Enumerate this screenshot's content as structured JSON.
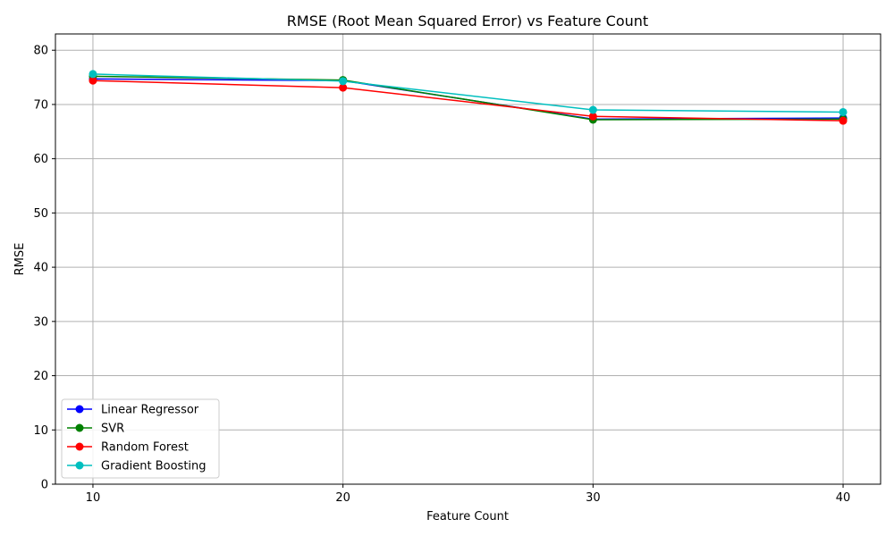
{
  "chart_data": {
    "type": "line",
    "title": "RMSE (Root Mean Squared Error) vs Feature Count",
    "xlabel": "Feature Count",
    "ylabel": "RMSE",
    "x": [
      10,
      20,
      30,
      40
    ],
    "xlim": [
      8.5,
      41.5
    ],
    "ylim": [
      0,
      83
    ],
    "xticks": [
      10,
      20,
      30,
      40
    ],
    "yticks": [
      0,
      10,
      20,
      30,
      40,
      50,
      60,
      70,
      80
    ],
    "grid": true,
    "legend_position": "lower-left",
    "series": [
      {
        "name": "Linear Regressor",
        "color": "#0000ff",
        "values": [
          74.7,
          74.4,
          67.3,
          67.5
        ]
      },
      {
        "name": "SVR",
        "color": "#008000",
        "values": [
          75.2,
          74.5,
          67.2,
          67.3
        ]
      },
      {
        "name": "Random Forest",
        "color": "#ff0000",
        "values": [
          74.4,
          73.1,
          67.8,
          67.0
        ]
      },
      {
        "name": "Gradient Boosting",
        "color": "#00bfbf",
        "values": [
          75.6,
          74.3,
          69.0,
          68.6
        ]
      }
    ]
  }
}
